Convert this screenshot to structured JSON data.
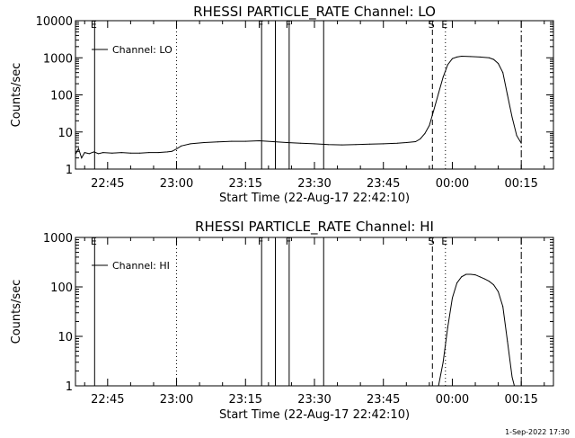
{
  "footer": {
    "timestamp": "1-Sep-2022 17:30"
  },
  "chart_data": [
    {
      "type": "line",
      "title": "RHESSI PARTICLE_RATE Channel: LO",
      "xlabel": "Start Time (22-Aug-17 22:42:10)",
      "ylabel": "Counts/sec",
      "yscale": "log",
      "xlim": [
        "22:38:00",
        "00:22:00"
      ],
      "ylim": [
        1,
        10000
      ],
      "xticks": [
        "22:45",
        "23:00",
        "23:15",
        "23:30",
        "23:45",
        "00:00",
        "00:15"
      ],
      "yticks": [
        "1",
        "10",
        "100",
        "1000",
        "10000"
      ],
      "legend": {
        "position": "top-left",
        "entries": [
          "Channel: LO"
        ]
      },
      "series": [
        {
          "name": "Channel: LO",
          "x": [
            "22:38:00",
            "22:38:40",
            "22:39:20",
            "22:40:00",
            "22:41:00",
            "22:42:00",
            "22:43:00",
            "22:44:00",
            "22:46:00",
            "22:48:00",
            "22:50:00",
            "22:52:00",
            "22:54:00",
            "22:56:00",
            "22:58:00",
            "22:59:00",
            "23:00:00",
            "23:01:00",
            "23:03:00",
            "23:06:00",
            "23:09:00",
            "23:12:00",
            "23:15:00",
            "23:18:00",
            "23:21:00",
            "23:24:00",
            "23:27:00",
            "23:30:00",
            "23:33:00",
            "23:36:00",
            "23:39:00",
            "23:42:00",
            "23:45:00",
            "23:48:00",
            "23:50:00",
            "23:52:00",
            "23:53:00",
            "23:54:00",
            "23:55:00",
            "23:56:00",
            "23:57:00",
            "23:58:00",
            "23:59:00",
            "00:00:00",
            "00:01:00",
            "00:02:00",
            "00:04:00",
            "00:06:00",
            "00:08:00",
            "00:09:00",
            "00:10:00",
            "00:11:00",
            "00:12:00",
            "00:13:00",
            "00:14:00",
            "00:15:00"
          ],
          "y": [
            2.5,
            3.6,
            2.0,
            2.8,
            2.6,
            2.9,
            2.6,
            2.8,
            2.7,
            2.8,
            2.7,
            2.7,
            2.8,
            2.8,
            2.9,
            3.0,
            3.5,
            4.2,
            4.8,
            5.2,
            5.4,
            5.6,
            5.6,
            5.8,
            5.5,
            5.2,
            5.0,
            4.8,
            4.6,
            4.5,
            4.6,
            4.7,
            4.8,
            5.0,
            5.2,
            5.5,
            6.5,
            9.0,
            15,
            40,
            110,
            300,
            650,
            950,
            1050,
            1100,
            1080,
            1050,
            1000,
            900,
            700,
            400,
            100,
            25,
            8,
            5
          ]
        }
      ],
      "markers": [
        {
          "time": "22:42:10",
          "label": "E",
          "style": "solid"
        },
        {
          "time": "23:00:00",
          "label": "",
          "style": "dotted"
        },
        {
          "time": "23:18:30",
          "label": "F",
          "style": "solid"
        },
        {
          "time": "23:21:30",
          "label": "",
          "style": "solid"
        },
        {
          "time": "23:24:30",
          "label": "F",
          "style": "solid"
        },
        {
          "time": "23:32:00",
          "label": "",
          "style": "solid"
        },
        {
          "time": "23:55:40",
          "label": "S",
          "style": "dashed"
        },
        {
          "time": "23:58:30",
          "label": "E",
          "style": "dotted"
        },
        {
          "time": "00:15:00",
          "label": "",
          "style": "dashdot"
        }
      ]
    },
    {
      "type": "line",
      "title": "RHESSI PARTICLE_RATE Channel: HI",
      "xlabel": "Start Time (22-Aug-17 22:42:10)",
      "ylabel": "Counts/sec",
      "yscale": "log",
      "xlim": [
        "22:38:00",
        "00:22:00"
      ],
      "ylim": [
        1,
        1000
      ],
      "xticks": [
        "22:45",
        "23:00",
        "23:15",
        "23:30",
        "23:45",
        "00:00",
        "00:15"
      ],
      "yticks": [
        "1",
        "10",
        "100",
        "1000"
      ],
      "legend": {
        "position": "top-left",
        "entries": [
          "Channel: HI"
        ]
      },
      "series": [
        {
          "name": "Channel: HI",
          "x": [
            "23:57:00",
            "23:58:00",
            "23:59:00",
            "00:00:00",
            "00:01:00",
            "00:02:00",
            "00:03:00",
            "00:04:00",
            "00:05:00",
            "00:06:00",
            "00:07:00",
            "00:08:00",
            "00:09:00",
            "00:10:00",
            "00:11:00",
            "00:12:00",
            "00:13:00",
            "00:13:30"
          ],
          "y": [
            1,
            3,
            15,
            60,
            120,
            160,
            180,
            180,
            175,
            160,
            145,
            130,
            110,
            80,
            40,
            8,
            1.5,
            1
          ]
        }
      ],
      "markers": [
        {
          "time": "22:42:10",
          "label": "E",
          "style": "solid"
        },
        {
          "time": "23:00:00",
          "label": "",
          "style": "dotted"
        },
        {
          "time": "23:18:30",
          "label": "F",
          "style": "solid"
        },
        {
          "time": "23:21:30",
          "label": "",
          "style": "solid"
        },
        {
          "time": "23:24:30",
          "label": "F",
          "style": "solid"
        },
        {
          "time": "23:32:00",
          "label": "",
          "style": "solid"
        },
        {
          "time": "23:55:40",
          "label": "S",
          "style": "dashed"
        },
        {
          "time": "23:58:30",
          "label": "E",
          "style": "dotted"
        },
        {
          "time": "00:15:00",
          "label": "",
          "style": "dashdot"
        }
      ]
    }
  ]
}
